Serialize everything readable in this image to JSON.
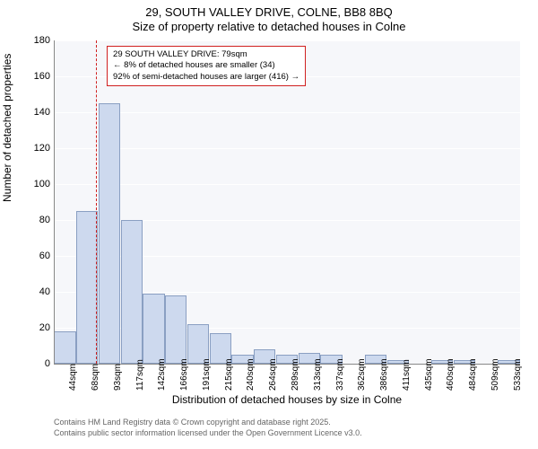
{
  "chart": {
    "type": "histogram",
    "title_main": "29, SOUTH VALLEY DRIVE, COLNE, BB8 8BQ",
    "title_sub": "Size of property relative to detached houses in Colne",
    "ylabel": "Number of detached properties",
    "xlabel": "Distribution of detached houses by size in Colne",
    "ylim": [
      0,
      180
    ],
    "ytick_step": 20,
    "yticks": [
      0,
      20,
      40,
      60,
      80,
      100,
      120,
      140,
      160,
      180
    ],
    "x_categories": [
      "44sqm",
      "68sqm",
      "93sqm",
      "117sqm",
      "142sqm",
      "166sqm",
      "191sqm",
      "215sqm",
      "240sqm",
      "264sqm",
      "289sqm",
      "313sqm",
      "337sqm",
      "362sqm",
      "386sqm",
      "411sqm",
      "435sqm",
      "460sqm",
      "484sqm",
      "509sqm",
      "533sqm"
    ],
    "values": [
      18,
      85,
      145,
      80,
      39,
      38,
      22,
      17,
      5,
      8,
      5,
      6,
      5,
      0,
      5,
      2,
      0,
      2,
      2,
      0,
      2
    ],
    "bar_fill": "#cdd9ee",
    "bar_stroke": "#8a9fc2",
    "plot_bg": "#f6f7fa",
    "grid_color": "#ffffff",
    "reference_line": {
      "position_index": 1.4,
      "color": "#d02020",
      "dash": true
    },
    "annotation": {
      "line1": "29 SOUTH VALLEY DRIVE: 79sqm",
      "line2": "← 8% of detached houses are smaller (34)",
      "line3": "92% of semi-detached houses are larger (416) →",
      "border_color": "#d02020",
      "bg_color": "#ffffff",
      "fontsize": 9.5
    },
    "title_fontsize": 13,
    "label_fontsize": 12,
    "tick_fontsize": 11,
    "attribution": {
      "line1": "Contains HM Land Registry data © Crown copyright and database right 2025.",
      "line2": "Contains public sector information licensed under the Open Government Licence v3.0.",
      "color": "#666666",
      "fontsize": 9
    }
  }
}
